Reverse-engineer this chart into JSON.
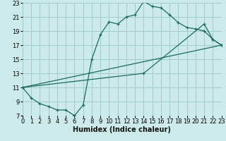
{
  "xlabel": "Humidex (Indice chaleur)",
  "bg_color": "#cdeaea",
  "grid_color": "#a0cccc",
  "line_color": "#1a6b5a",
  "xlim": [
    0,
    23
  ],
  "ylim": [
    7,
    23
  ],
  "xticks": [
    0,
    1,
    2,
    3,
    4,
    5,
    6,
    7,
    8,
    9,
    10,
    11,
    12,
    13,
    14,
    15,
    16,
    17,
    18,
    19,
    20,
    21,
    22,
    23
  ],
  "yticks": [
    7,
    9,
    11,
    13,
    15,
    17,
    19,
    21,
    23
  ],
  "curve1_x": [
    0,
    1,
    2,
    3,
    4,
    5,
    6,
    6,
    7,
    8,
    9,
    10,
    11,
    12,
    13,
    14,
    15,
    16,
    17,
    18,
    19,
    20,
    21,
    22,
    23
  ],
  "curve1_y": [
    11,
    9.5,
    8.7,
    8.3,
    7.8,
    7.8,
    7.0,
    7.0,
    8.5,
    15.0,
    18.5,
    20.3,
    20.0,
    21.0,
    21.3,
    23.2,
    22.5,
    22.3,
    21.3,
    20.2,
    19.5,
    19.3,
    19.0,
    17.8,
    17.0
  ],
  "curve2_x": [
    0,
    23
  ],
  "curve2_y": [
    11,
    17.0
  ],
  "curve3_x": [
    0,
    14,
    21,
    22,
    23
  ],
  "curve3_y": [
    11,
    13.0,
    20.0,
    17.8,
    17.0
  ],
  "xlabel_fontsize": 7,
  "tick_fontsize": 6
}
